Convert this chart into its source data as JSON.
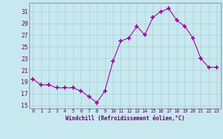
{
  "x": [
    0,
    1,
    2,
    3,
    4,
    5,
    6,
    7,
    8,
    9,
    10,
    11,
    12,
    13,
    14,
    15,
    16,
    17,
    18,
    19,
    20,
    21,
    22,
    23
  ],
  "y": [
    19.5,
    18.5,
    18.5,
    18.0,
    18.0,
    18.0,
    17.5,
    16.5,
    15.5,
    17.5,
    22.5,
    26.0,
    26.5,
    28.5,
    27.0,
    30.0,
    31.0,
    31.5,
    29.5,
    28.5,
    26.5,
    23.0,
    21.5,
    21.5
  ],
  "line_color": "#990099",
  "marker": "+",
  "marker_size": 4,
  "bg_color": "#c8e8f0",
  "grid_color": "#aacccc",
  "xlabel": "Windchill (Refroidissement éolien,°C)",
  "xlabel_color": "#660066",
  "tick_color": "#660066",
  "spine_color": "#8899aa",
  "ylim": [
    14.5,
    32.5
  ],
  "xlim": [
    -0.5,
    23.5
  ],
  "yticks": [
    15,
    17,
    19,
    21,
    23,
    25,
    27,
    29,
    31
  ],
  "xticks": [
    0,
    1,
    2,
    3,
    4,
    5,
    6,
    7,
    8,
    9,
    10,
    11,
    12,
    13,
    14,
    15,
    16,
    17,
    18,
    19,
    20,
    21,
    22,
    23
  ]
}
